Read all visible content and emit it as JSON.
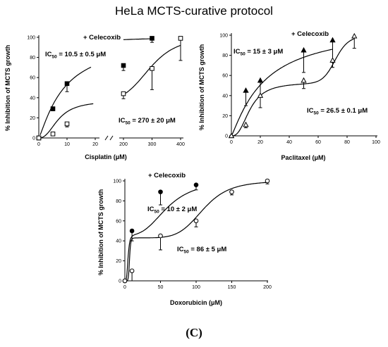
{
  "figure": {
    "title": "HeLa MCTS-curative protocol",
    "panel_label": "(C)"
  },
  "chart_data": [
    {
      "type": "scatter",
      "xlabel": "Cisplatin (μM)",
      "ylabel": "% Inhibition of MCTS growth",
      "xticks": [
        0,
        10,
        20,
        200,
        300,
        400
      ],
      "yticks": [
        0,
        20,
        40,
        60,
        80,
        100
      ],
      "ylim": [
        0,
        100
      ],
      "axis_break": [
        20,
        200
      ],
      "legend_label": "+ Celecoxib",
      "annotations": {
        "ic50_filled": {
          "prefix": "IC",
          "sub": "50",
          "rest": " = 10.5 ± 0.5 μM"
        },
        "ic50_open": {
          "prefix": "IC",
          "sub": "50",
          "rest": " = 270 ± 20 μM"
        }
      },
      "series": [
        {
          "marker": "filled-square",
          "x": [
            0,
            5,
            10,
            200,
            300
          ],
          "y": [
            0,
            29,
            54,
            72,
            99
          ],
          "err": [
            0,
            2,
            8,
            5,
            4
          ]
        },
        {
          "marker": "open-square",
          "x": [
            0,
            5,
            10,
            200,
            300,
            400
          ],
          "y": [
            0,
            4,
            14,
            44,
            69,
            99
          ],
          "err": [
            0,
            1,
            3,
            5,
            21,
            22
          ]
        }
      ]
    },
    {
      "type": "scatter",
      "xlabel": "Paclitaxel (μM)",
      "ylabel": "% Inhibition of MCTS growth",
      "xticks": [
        0,
        20,
        40,
        60,
        80,
        100
      ],
      "yticks": [
        0,
        20,
        40,
        60,
        80,
        100
      ],
      "xlim": [
        0,
        100
      ],
      "ylim": [
        0,
        100
      ],
      "legend_label": "+ Celecoxib",
      "annotations": {
        "ic50_filled": {
          "prefix": "IC",
          "sub": "50",
          "rest": " = 15 ± 3 μM"
        },
        "ic50_open": {
          "prefix": "IC",
          "sub": "50",
          "rest": " = 26.5 ±  0.1 μM"
        }
      },
      "series": [
        {
          "marker": "filled-triangle",
          "x": [
            0,
            10,
            20,
            50,
            70
          ],
          "y": [
            0,
            45,
            55,
            85,
            95
          ],
          "err": [
            0,
            15,
            15,
            22,
            22
          ]
        },
        {
          "marker": "open-triangle",
          "x": [
            0,
            10,
            20,
            50,
            70,
            85
          ],
          "y": [
            0,
            11,
            40,
            55,
            75,
            99
          ],
          "err": [
            0,
            3,
            12,
            8,
            7,
            12
          ]
        }
      ]
    },
    {
      "type": "scatter",
      "xlabel": "Doxorubicin (μM)",
      "ylabel": "% Inhibition of MCTS growth",
      "xticks": [
        0,
        50,
        100,
        150,
        200
      ],
      "yticks": [
        0,
        20,
        40,
        60,
        80,
        100
      ],
      "xlim": [
        0,
        200
      ],
      "ylim": [
        0,
        100
      ],
      "legend_label": "+ Celecoxib",
      "annotations": {
        "ic50_filled": {
          "prefix": "IC",
          "sub": "50",
          "rest": " = 10 ± 2 μM"
        },
        "ic50_open": {
          "prefix": "IC",
          "sub": "50",
          "rest": " = 86 ±  5 μM"
        }
      },
      "series": [
        {
          "marker": "filled-circle",
          "x": [
            0,
            10,
            50,
            100
          ],
          "y": [
            0,
            50,
            89,
            96
          ],
          "err": [
            0,
            10,
            13,
            5
          ]
        },
        {
          "marker": "open-circle",
          "x": [
            0,
            10,
            50,
            100,
            150,
            200
          ],
          "y": [
            0,
            10,
            45,
            60,
            89,
            100
          ],
          "err": [
            0,
            10,
            14,
            6,
            3,
            3
          ]
        }
      ]
    }
  ]
}
